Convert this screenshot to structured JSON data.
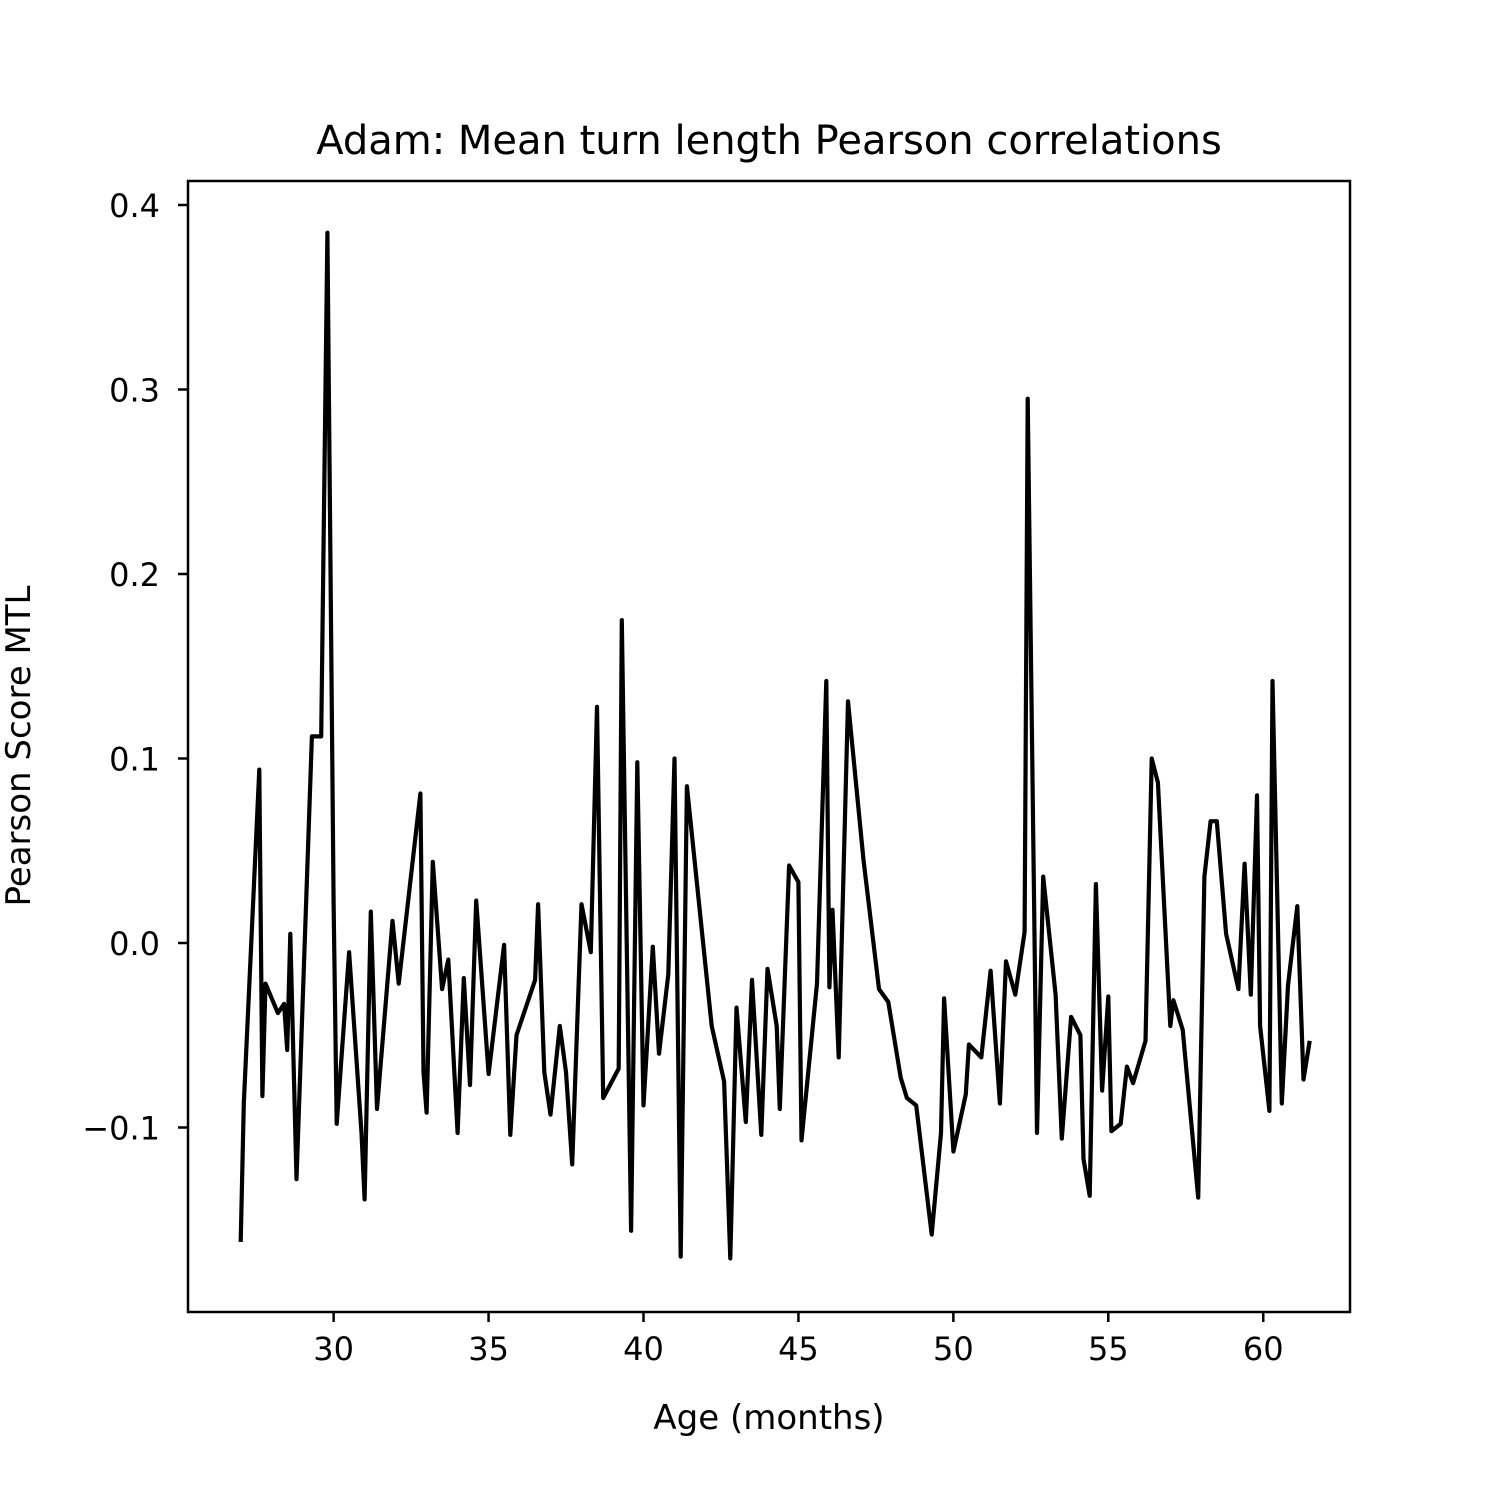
{
  "chart_data": {
    "type": "line",
    "title": "Adam: Mean turn length Pearson correlations",
    "xlabel": "Age (months)",
    "ylabel": "Pearson Score MTL",
    "xlim": [
      25.3,
      62.8
    ],
    "ylim": [
      -0.2,
      0.413
    ],
    "xticks": [
      30,
      35,
      40,
      45,
      50,
      55,
      60
    ],
    "xtick_labels": [
      "30",
      "35",
      "40",
      "45",
      "50",
      "55",
      "60"
    ],
    "yticks": [
      -0.1,
      0.0,
      0.1,
      0.2,
      0.3,
      0.4
    ],
    "ytick_labels": [
      "−0.1",
      "0.0",
      "0.1",
      "0.2",
      "0.3",
      "0.4"
    ],
    "grid": false,
    "legend": "none",
    "line_color": "#000000",
    "series": [
      {
        "points": [
          [
            27.0,
            -0.162
          ],
          [
            27.1,
            -0.087
          ],
          [
            27.6,
            0.094
          ],
          [
            27.7,
            -0.083
          ],
          [
            27.8,
            -0.022
          ],
          [
            28.2,
            -0.038
          ],
          [
            28.4,
            -0.033
          ],
          [
            28.5,
            -0.058
          ],
          [
            28.6,
            0.005
          ],
          [
            28.8,
            -0.128
          ],
          [
            29.3,
            0.112
          ],
          [
            29.6,
            0.112
          ],
          [
            29.8,
            0.385
          ],
          [
            30.0,
            0.022
          ],
          [
            30.1,
            -0.098
          ],
          [
            30.5,
            -0.005
          ],
          [
            30.9,
            -0.103
          ],
          [
            31.0,
            -0.139
          ],
          [
            31.2,
            0.017
          ],
          [
            31.4,
            -0.09
          ],
          [
            31.9,
            0.012
          ],
          [
            32.1,
            -0.022
          ],
          [
            32.8,
            0.081
          ],
          [
            32.9,
            -0.07
          ],
          [
            33.0,
            -0.092
          ],
          [
            33.2,
            0.044
          ],
          [
            33.5,
            -0.025
          ],
          [
            33.7,
            -0.009
          ],
          [
            34.0,
            -0.103
          ],
          [
            34.2,
            -0.019
          ],
          [
            34.4,
            -0.077
          ],
          [
            34.6,
            0.023
          ],
          [
            35.0,
            -0.071
          ],
          [
            35.5,
            -0.001
          ],
          [
            35.7,
            -0.104
          ],
          [
            35.9,
            -0.05
          ],
          [
            36.5,
            -0.02
          ],
          [
            36.6,
            0.021
          ],
          [
            36.8,
            -0.07
          ],
          [
            37.0,
            -0.093
          ],
          [
            37.3,
            -0.045
          ],
          [
            37.5,
            -0.07
          ],
          [
            37.7,
            -0.12
          ],
          [
            38.0,
            0.021
          ],
          [
            38.3,
            -0.005
          ],
          [
            38.5,
            0.128
          ],
          [
            38.7,
            -0.084
          ],
          [
            39.2,
            -0.068
          ],
          [
            39.3,
            0.175
          ],
          [
            39.6,
            -0.156
          ],
          [
            39.8,
            0.098
          ],
          [
            40.0,
            -0.088
          ],
          [
            40.3,
            -0.002
          ],
          [
            40.5,
            -0.06
          ],
          [
            40.8,
            -0.017
          ],
          [
            41.0,
            0.1
          ],
          [
            41.2,
            -0.17
          ],
          [
            41.4,
            0.085
          ],
          [
            42.2,
            -0.045
          ],
          [
            42.6,
            -0.075
          ],
          [
            42.8,
            -0.171
          ],
          [
            43.0,
            -0.035
          ],
          [
            43.3,
            -0.097
          ],
          [
            43.5,
            -0.02
          ],
          [
            43.8,
            -0.104
          ],
          [
            44.0,
            -0.014
          ],
          [
            44.3,
            -0.045
          ],
          [
            44.4,
            -0.09
          ],
          [
            44.7,
            0.042
          ],
          [
            45.0,
            0.033
          ],
          [
            45.1,
            -0.107
          ],
          [
            45.6,
            -0.022
          ],
          [
            45.9,
            0.142
          ],
          [
            46.0,
            -0.024
          ],
          [
            46.1,
            0.018
          ],
          [
            46.3,
            -0.062
          ],
          [
            46.6,
            0.131
          ],
          [
            47.1,
            0.045
          ],
          [
            47.6,
            -0.025
          ],
          [
            47.9,
            -0.032
          ],
          [
            48.3,
            -0.073
          ],
          [
            48.5,
            -0.084
          ],
          [
            48.8,
            -0.088
          ],
          [
            49.3,
            -0.158
          ],
          [
            49.6,
            -0.103
          ],
          [
            49.7,
            -0.03
          ],
          [
            50.0,
            -0.113
          ],
          [
            50.4,
            -0.082
          ],
          [
            50.5,
            -0.055
          ],
          [
            50.9,
            -0.062
          ],
          [
            51.2,
            -0.015
          ],
          [
            51.5,
            -0.087
          ],
          [
            51.7,
            -0.01
          ],
          [
            52.0,
            -0.028
          ],
          [
            52.3,
            0.006
          ],
          [
            52.4,
            0.295
          ],
          [
            52.7,
            -0.103
          ],
          [
            52.9,
            0.036
          ],
          [
            53.3,
            -0.028
          ],
          [
            53.5,
            -0.106
          ],
          [
            53.8,
            -0.04
          ],
          [
            54.1,
            -0.05
          ],
          [
            54.2,
            -0.117
          ],
          [
            54.4,
            -0.137
          ],
          [
            54.6,
            0.032
          ],
          [
            54.8,
            -0.08
          ],
          [
            55.0,
            -0.029
          ],
          [
            55.1,
            -0.102
          ],
          [
            55.4,
            -0.098
          ],
          [
            55.6,
            -0.067
          ],
          [
            55.8,
            -0.076
          ],
          [
            56.2,
            -0.053
          ],
          [
            56.4,
            0.1
          ],
          [
            56.6,
            0.087
          ],
          [
            57.0,
            -0.045
          ],
          [
            57.1,
            -0.031
          ],
          [
            57.4,
            -0.047
          ],
          [
            57.9,
            -0.138
          ],
          [
            58.1,
            0.036
          ],
          [
            58.3,
            0.066
          ],
          [
            58.5,
            0.066
          ],
          [
            58.8,
            0.005
          ],
          [
            59.2,
            -0.025
          ],
          [
            59.4,
            0.043
          ],
          [
            59.6,
            -0.028
          ],
          [
            59.8,
            0.08
          ],
          [
            59.9,
            -0.045
          ],
          [
            60.2,
            -0.091
          ],
          [
            60.3,
            0.142
          ],
          [
            60.6,
            -0.087
          ],
          [
            60.8,
            -0.023
          ],
          [
            61.1,
            0.02
          ],
          [
            61.3,
            -0.074
          ],
          [
            61.5,
            -0.053
          ]
        ]
      }
    ]
  }
}
